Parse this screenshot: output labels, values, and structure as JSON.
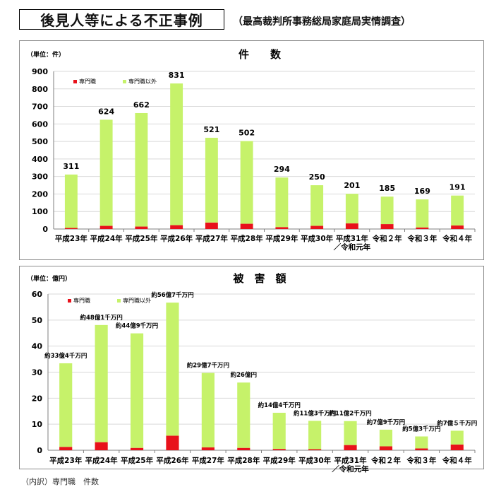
{
  "page": {
    "heading": "後見人等による不正事例",
    "source": "（最高裁判所事務総局家庭局実情調査）",
    "footnote": "（内訳）専門職　件数"
  },
  "colors": {
    "professional": "#e8121b",
    "non_professional": "#c6f26a",
    "grid": "#d9d9d9",
    "axis": "#7f7f7f"
  },
  "chart_data": [
    {
      "type": "bar",
      "stacked": true,
      "title": "件　　数",
      "unit_label": "（単位：件）",
      "categories": [
        "平成23年",
        "平成24年",
        "平成25年",
        "平成26年",
        "平成27年",
        "平成28年",
        "平成29年",
        "平成30年",
        "平成31年\n／令和元年",
        "令和２年",
        "令和３年",
        "令和４年"
      ],
      "ylim": [
        0,
        900
      ],
      "yticks": [
        0,
        100,
        200,
        300,
        400,
        500,
        600,
        700,
        800,
        900
      ],
      "grid": true,
      "legend_position": "top-left",
      "totals": [
        311,
        624,
        662,
        831,
        521,
        502,
        294,
        250,
        201,
        185,
        169,
        191
      ],
      "total_labels": [
        "311",
        "624",
        "662",
        "831",
        "521",
        "502",
        "294",
        "250",
        "201",
        "185",
        "169",
        "191"
      ],
      "series": [
        {
          "name": "専門職",
          "color": "#e8121b",
          "values": [
            6,
            18,
            14,
            22,
            37,
            30,
            11,
            18,
            32,
            28,
            9,
            20
          ]
        },
        {
          "name": "専門職以外",
          "color": "#c6f26a",
          "values": [
            305,
            606,
            648,
            809,
            484,
            472,
            283,
            232,
            169,
            157,
            160,
            171
          ]
        }
      ]
    },
    {
      "type": "bar",
      "stacked": true,
      "title": "被　害　額",
      "unit_label": "（単位：億円）",
      "categories": [
        "平成23年",
        "平成24年",
        "平成25年",
        "平成26年",
        "平成27年",
        "平成28年",
        "平成29年",
        "平成30年",
        "平成31年\n／令和元年",
        "令和２年",
        "令和３年",
        "令和４年"
      ],
      "ylim": [
        0,
        60
      ],
      "yticks": [
        0,
        10,
        20,
        30,
        40,
        50,
        60
      ],
      "grid": true,
      "legend_position": "top-left",
      "totals": [
        33.4,
        48.1,
        44.9,
        56.7,
        29.7,
        26.0,
        14.4,
        11.3,
        11.2,
        7.9,
        5.3,
        7.5
      ],
      "total_labels": [
        "約33億4千万円",
        "約48億1千万円",
        "約44億9千万円",
        "約56億7千万円",
        "約29億7千万円",
        "約26億円",
        "約14億4千万円",
        "約11億3千万円",
        "約11億2千万円",
        "約7億9千万円",
        "約5億3千万円",
        "約7億５千万円"
      ],
      "series": [
        {
          "name": "専門職",
          "color": "#e8121b",
          "values": [
            1.3,
            3.1,
            0.9,
            5.6,
            1.1,
            0.9,
            0.5,
            0.4,
            2.0,
            1.5,
            0.7,
            2.2
          ]
        },
        {
          "name": "専門職以外",
          "color": "#c6f26a",
          "values": [
            32.1,
            45.0,
            44.0,
            51.1,
            28.6,
            25.1,
            13.9,
            10.9,
            9.2,
            6.4,
            4.6,
            5.3
          ]
        }
      ]
    }
  ]
}
